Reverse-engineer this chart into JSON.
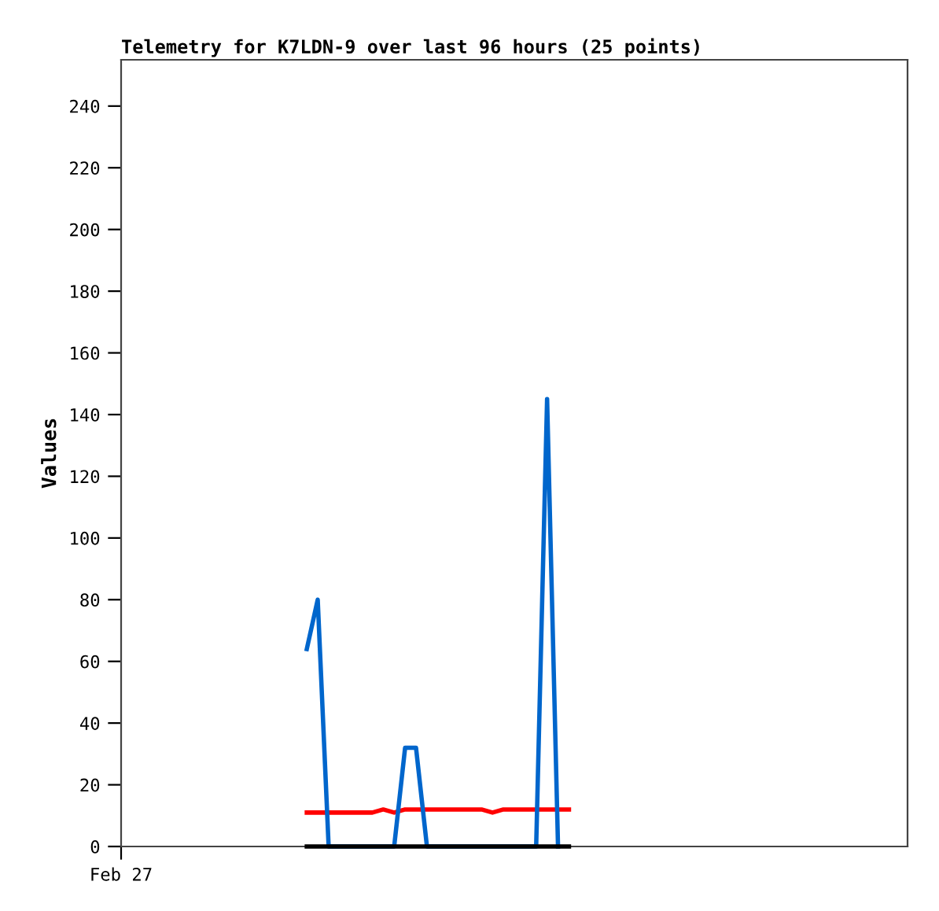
{
  "chart_data": {
    "type": "line",
    "title": "Telemetry for K7LDN-9 over last 96 hours (25 points)",
    "ylabel": "Values",
    "categories": [
      "Feb 27",
      null,
      null,
      null,
      null,
      null,
      null,
      null,
      null,
      null,
      null,
      null,
      null,
      null,
      null,
      null,
      null,
      null,
      null,
      null,
      null,
      null,
      null,
      null,
      null,
      null,
      null,
      null,
      null,
      null,
      null,
      null,
      null,
      null,
      null,
      null,
      null,
      null,
      null,
      null,
      null,
      null,
      null,
      null,
      null,
      null,
      null,
      null,
      null,
      null,
      null,
      null,
      null,
      null,
      null,
      null,
      null,
      null,
      null,
      null,
      null,
      null,
      null,
      null,
      null,
      null,
      null,
      null,
      null,
      null,
      null,
      null,
      null
    ],
    "ylim": [
      0,
      255
    ],
    "yticks": [
      0,
      20,
      40,
      60,
      80,
      100,
      120,
      140,
      160,
      180,
      200,
      220,
      240
    ],
    "grid": false,
    "legend": false,
    "marker": "none",
    "line_style": "solid",
    "series": [
      {
        "color": "#ff0000",
        "values": [
          null,
          null,
          null,
          null,
          null,
          null,
          null,
          null,
          null,
          null,
          null,
          null,
          null,
          null,
          null,
          null,
          null,
          11,
          11,
          11,
          11,
          11,
          11,
          11,
          12,
          11,
          12,
          12,
          12,
          12,
          12,
          12,
          12,
          12,
          11,
          12,
          12,
          12,
          12,
          12,
          12,
          12,
          null,
          null,
          null,
          null,
          null,
          null,
          null,
          null,
          null,
          null,
          null,
          null,
          null,
          null,
          null,
          null,
          null,
          null,
          null,
          null,
          null,
          null,
          null,
          null,
          null,
          null,
          null,
          null,
          null,
          null,
          null
        ]
      },
      {
        "color": "#0066cc",
        "values": [
          null,
          null,
          null,
          null,
          null,
          null,
          null,
          null,
          null,
          null,
          null,
          null,
          null,
          null,
          null,
          null,
          null,
          64,
          80,
          0,
          0,
          0,
          0,
          0,
          0,
          0,
          32,
          32,
          0,
          0,
          0,
          0,
          0,
          0,
          0,
          0,
          0,
          0,
          0,
          145,
          0,
          null,
          null,
          null,
          null,
          null,
          null,
          null,
          null,
          null,
          null,
          null,
          null,
          null,
          null,
          null,
          null,
          null,
          null,
          null,
          null,
          null,
          null,
          null,
          null,
          null,
          null,
          null,
          null,
          null,
          null,
          null,
          null
        ]
      },
      {
        "color": "#000000",
        "values": [
          null,
          null,
          null,
          null,
          null,
          null,
          null,
          null,
          null,
          null,
          null,
          null,
          null,
          null,
          null,
          null,
          null,
          0,
          0,
          0,
          0,
          0,
          0,
          0,
          0,
          0,
          0,
          0,
          0,
          0,
          0,
          0,
          0,
          0,
          0,
          0,
          0,
          0,
          0,
          0,
          0,
          0,
          null,
          null,
          null,
          null,
          null,
          null,
          null,
          null,
          null,
          null,
          null,
          null,
          null,
          null,
          null,
          null,
          null,
          null,
          null,
          null,
          null,
          null,
          null,
          null,
          null,
          null,
          null,
          null,
          null,
          null,
          null
        ]
      }
    ]
  }
}
